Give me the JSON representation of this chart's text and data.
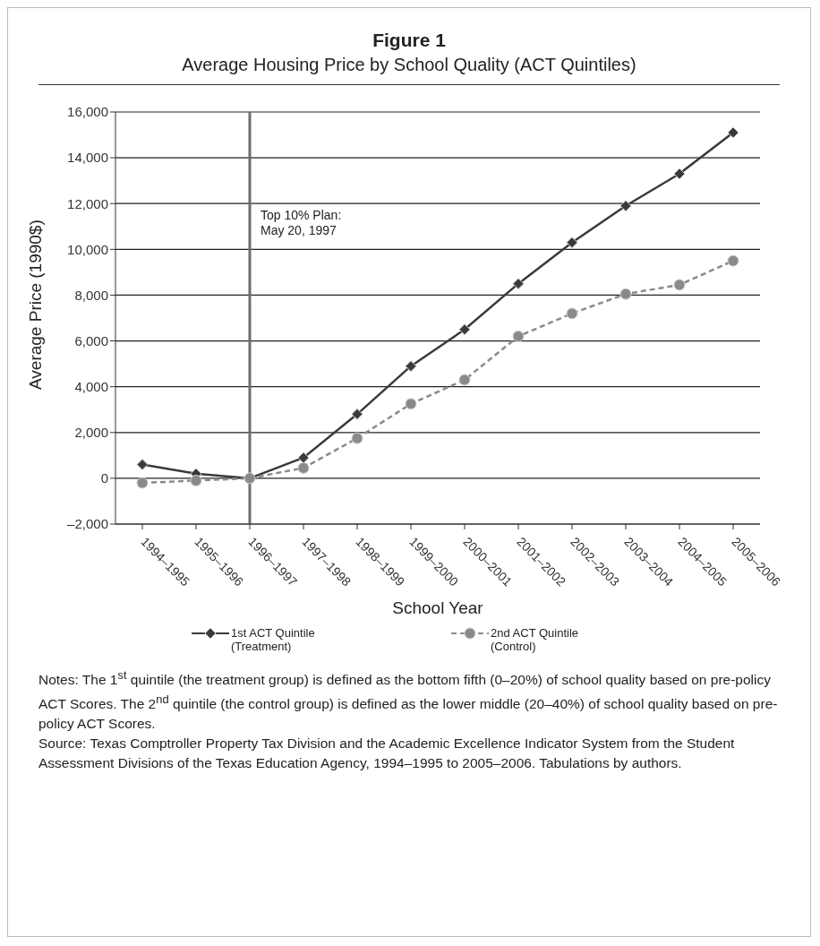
{
  "chart_data": {
    "type": "line",
    "title": "Figure 1",
    "subtitle": "Average Housing Price by School Quality (ACT Quintiles)",
    "xlabel": "School Year",
    "ylabel": "Average Price (1990$)",
    "categories": [
      "1994–1995",
      "1995–1996",
      "1996–1997",
      "1997–1998",
      "1998–1999",
      "1999–2000",
      "2000–2001",
      "2001–2002",
      "2002–2003",
      "2003–2004",
      "2004–2005",
      "2005–2006"
    ],
    "series": [
      {
        "name": "1st ACT Quintile (Treatment)",
        "color": "#3a3a3a",
        "marker": "diamond",
        "line_style": "solid",
        "values": [
          600,
          200,
          0,
          900,
          2800,
          4900,
          6500,
          8500,
          10300,
          11900,
          13300,
          15100
        ]
      },
      {
        "name": "2nd ACT Quintile (Control)",
        "color": "#8a8a8a",
        "marker": "circle",
        "line_style": "dashed",
        "values": [
          -200,
          -100,
          0,
          450,
          1750,
          3250,
          4300,
          6200,
          7200,
          8050,
          8450,
          9500
        ]
      }
    ],
    "ylim": [
      -2000,
      16000
    ],
    "yticks": [
      {
        "value": -2000,
        "label": "–2,000"
      },
      0,
      {
        "value": 2000,
        "label": "2,000"
      },
      {
        "value": 4000,
        "label": "4,000"
      },
      {
        "value": 6000,
        "label": "6,000"
      },
      {
        "value": 8000,
        "label": "8,000"
      },
      {
        "value": 10000,
        "label": "10,000"
      },
      {
        "value": 12000,
        "label": "12,000"
      },
      {
        "value": 14000,
        "label": "14,000"
      },
      {
        "value": 16000,
        "label": "16,000"
      }
    ],
    "grid": "y",
    "legend": "bottom",
    "ref_lines": [
      {
        "axis": "x",
        "value": "1996–1997",
        "label": "Top 10% Plan:\nMay 20, 1997",
        "color": "#6d6d6d"
      }
    ],
    "annotations": [
      "Notes: The 1$^{st}$ quintile (the treatment group) is defined as the bottom fifth (0–20%) of school quality based on pre-policy ACT Scores. The 2$^{nd}$ quintile (the control group) is defined as the lower middle (20–40%) of school quality based on pre-policy ACT Scores.",
      "Source: Texas Comptroller Property Tax Division and the Academic Excellence Indicator System from the Student Assessment Divisions of the Texas Education Agency, 1994–1995 to 2005–2006. Tabulations by authors."
    ]
  }
}
